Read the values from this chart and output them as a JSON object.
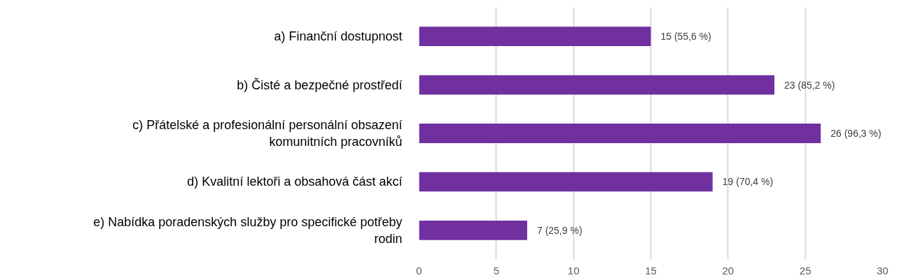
{
  "chart_data": {
    "type": "bar",
    "orientation": "horizontal",
    "categories": [
      "a) Finanční dostupnost",
      "b) Čisté a bezpečné prostředí",
      "c) Přátelské a profesionální personální obsazení komunitních pracovníků",
      "d) Kvalitní lektoři a obsahová část akcí",
      "e) Nabídka poradenských služby pro specifické potřeby rodin"
    ],
    "values": [
      15,
      23,
      26,
      19,
      7
    ],
    "value_labels": [
      "15 (55,6 %)",
      "23 (85,2 %)",
      "26 (96,3 %)",
      "19 (70,4 %)",
      "7 (25,9 %)"
    ],
    "color": "#7030a0",
    "xlim": [
      0,
      30
    ],
    "xticks": [
      0,
      5,
      10,
      15,
      20,
      25,
      30
    ],
    "grid": "x",
    "legend": false
  }
}
